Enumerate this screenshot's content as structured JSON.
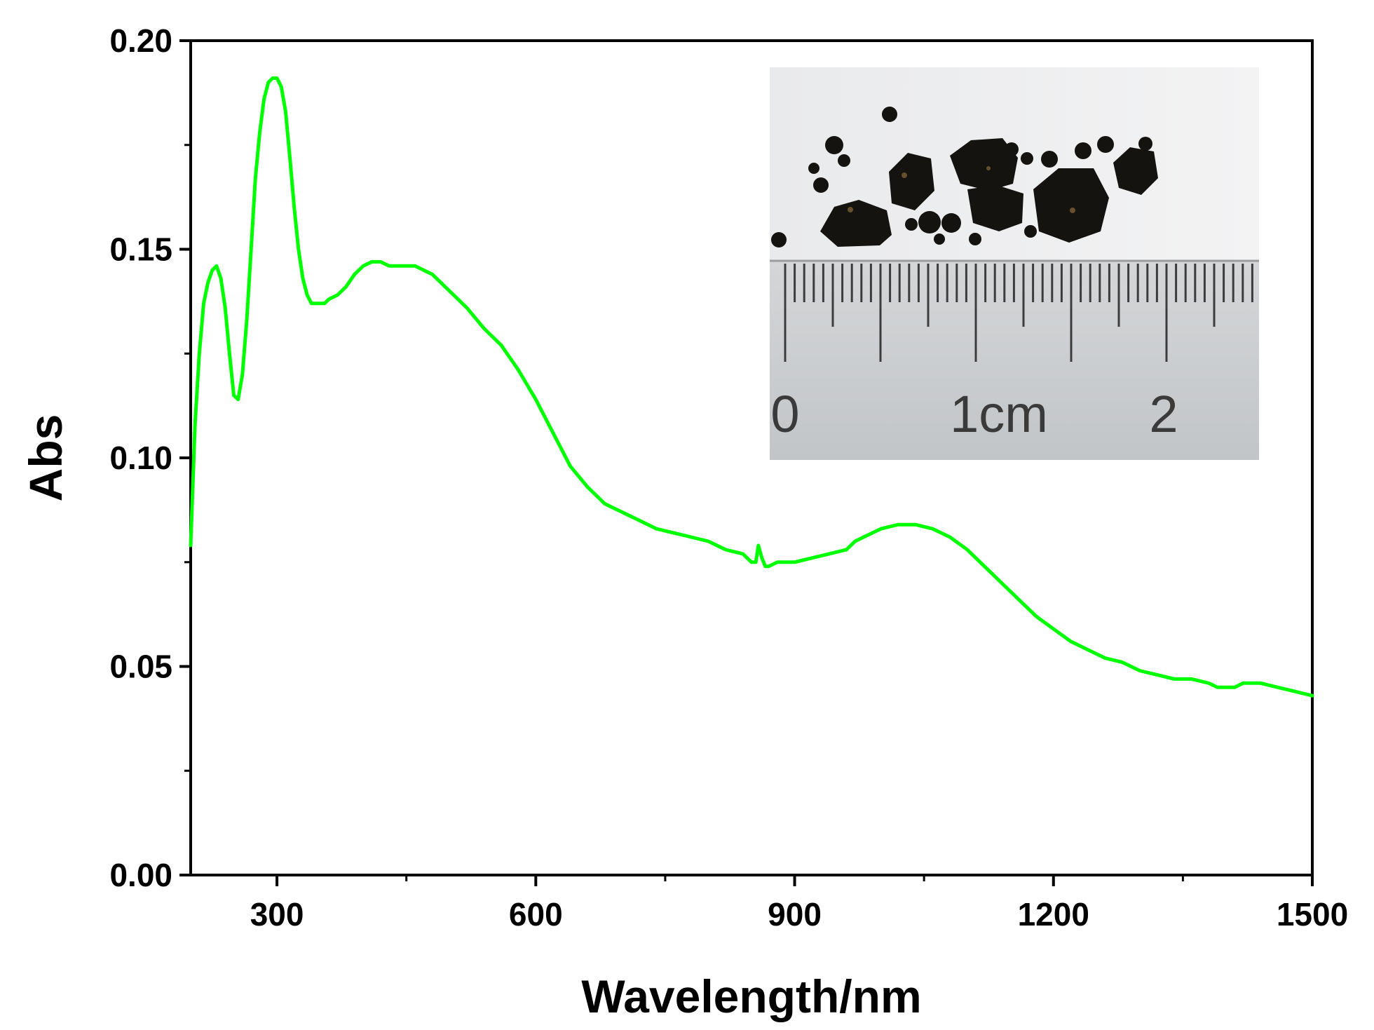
{
  "chart_data": {
    "type": "line",
    "xlabel": "Wavelength/nm",
    "ylabel": "Abs",
    "xlim": [
      200,
      1500
    ],
    "ylim": [
      0.0,
      0.2
    ],
    "x_ticks": [
      300,
      600,
      900,
      1200,
      1500
    ],
    "x_tick_labels": [
      "300",
      "600",
      "900",
      "1200",
      "1500"
    ],
    "y_ticks": [
      0.0,
      0.05,
      0.1,
      0.15,
      0.2
    ],
    "y_tick_labels": [
      "0.00",
      "0.05",
      "0.10",
      "0.15",
      "0.20"
    ],
    "grid": false,
    "legend": "none",
    "series": [
      {
        "color": "#00ff00",
        "x": [
          200,
          205,
          210,
          215,
          220,
          225,
          230,
          235,
          240,
          245,
          250,
          255,
          260,
          265,
          270,
          275,
          280,
          285,
          290,
          295,
          300,
          305,
          310,
          315,
          320,
          325,
          330,
          335,
          340,
          345,
          350,
          355,
          360,
          370,
          380,
          390,
          400,
          410,
          420,
          430,
          440,
          450,
          460,
          470,
          480,
          490,
          500,
          520,
          540,
          560,
          580,
          600,
          620,
          640,
          660,
          680,
          700,
          720,
          740,
          760,
          780,
          800,
          820,
          840,
          850,
          855,
          858,
          862,
          866,
          870,
          880,
          900,
          920,
          940,
          960,
          970,
          980,
          1000,
          1020,
          1040,
          1060,
          1080,
          1100,
          1120,
          1140,
          1160,
          1180,
          1200,
          1220,
          1240,
          1260,
          1280,
          1300,
          1320,
          1340,
          1360,
          1380,
          1390,
          1400,
          1410,
          1420,
          1430,
          1440,
          1460,
          1480,
          1500
        ],
        "y": [
          0.079,
          0.108,
          0.125,
          0.137,
          0.142,
          0.145,
          0.146,
          0.143,
          0.136,
          0.125,
          0.115,
          0.114,
          0.12,
          0.133,
          0.15,
          0.167,
          0.178,
          0.186,
          0.19,
          0.191,
          0.191,
          0.189,
          0.183,
          0.172,
          0.16,
          0.15,
          0.143,
          0.139,
          0.137,
          0.137,
          0.137,
          0.137,
          0.138,
          0.139,
          0.141,
          0.144,
          0.146,
          0.147,
          0.147,
          0.146,
          0.146,
          0.146,
          0.146,
          0.145,
          0.144,
          0.142,
          0.14,
          0.136,
          0.131,
          0.127,
          0.121,
          0.114,
          0.106,
          0.098,
          0.093,
          0.089,
          0.087,
          0.085,
          0.083,
          0.082,
          0.081,
          0.08,
          0.078,
          0.077,
          0.075,
          0.075,
          0.079,
          0.076,
          0.074,
          0.074,
          0.075,
          0.075,
          0.076,
          0.077,
          0.078,
          0.08,
          0.081,
          0.083,
          0.084,
          0.084,
          0.083,
          0.081,
          0.078,
          0.074,
          0.07,
          0.066,
          0.062,
          0.059,
          0.056,
          0.054,
          0.052,
          0.051,
          0.049,
          0.048,
          0.047,
          0.047,
          0.046,
          0.045,
          0.045,
          0.045,
          0.046,
          0.046,
          0.046,
          0.045,
          0.044,
          0.043
        ]
      }
    ]
  },
  "inset": {
    "ruler_labels": [
      "0",
      "1cm",
      "2"
    ]
  }
}
